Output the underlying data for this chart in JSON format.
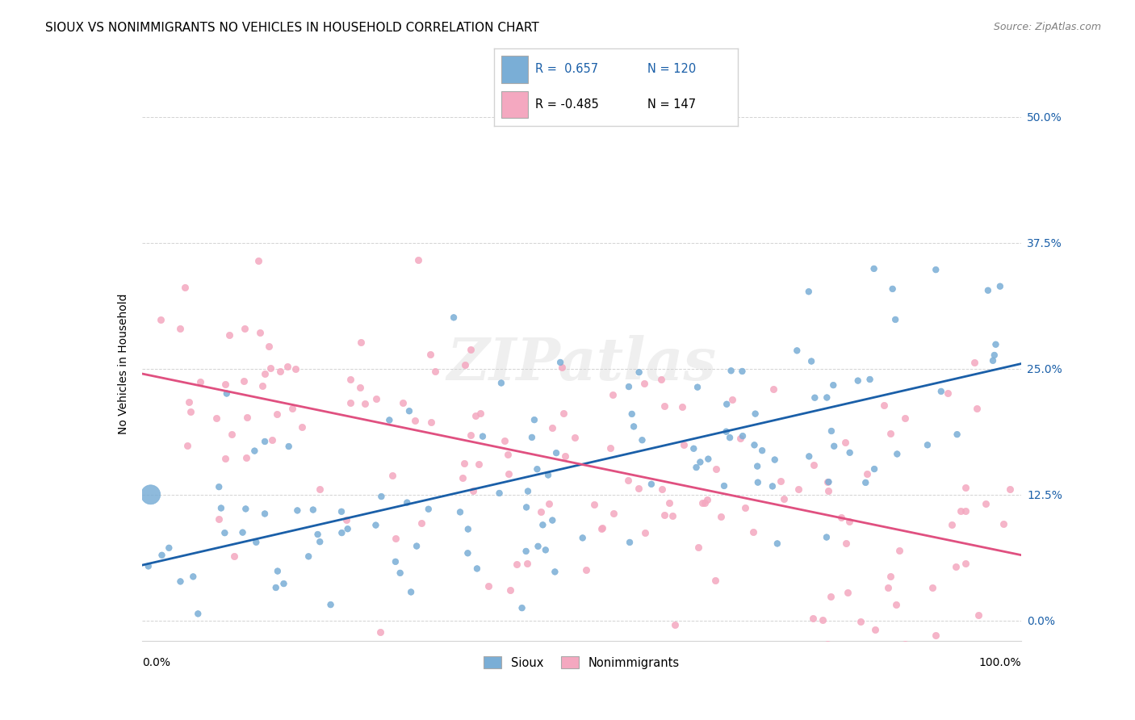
{
  "title": "SIOUX VS NONIMMIGRANTS NO VEHICLES IN HOUSEHOLD CORRELATION CHART",
  "source": "Source: ZipAtlas.com",
  "ylabel": "No Vehicles in Household",
  "ytick_labels": [
    "0.0%",
    "12.5%",
    "25.0%",
    "37.5%",
    "50.0%"
  ],
  "ytick_values": [
    0.0,
    0.125,
    0.25,
    0.375,
    0.5
  ],
  "xlim": [
    0.0,
    1.0
  ],
  "ylim": [
    -0.02,
    0.53
  ],
  "legend_blue_r": "R =  0.657",
  "legend_blue_n": "N = 120",
  "legend_pink_r": "R = -0.485",
  "legend_pink_n": "N = 147",
  "legend_label_blue": "Sioux",
  "legend_label_pink": "Nonimmigrants",
  "blue_color": "#7aaed6",
  "pink_color": "#f4a8c0",
  "blue_line_color": "#1a5fa8",
  "pink_line_color": "#e05080",
  "watermark": "ZIPatlas",
  "blue_line": {
    "x0": 0.0,
    "x1": 1.0,
    "y0": 0.055,
    "y1": 0.255
  },
  "pink_line": {
    "x0": 0.0,
    "x1": 1.0,
    "y0": 0.245,
    "y1": 0.065
  }
}
